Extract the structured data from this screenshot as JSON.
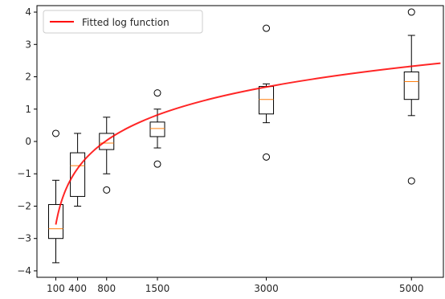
{
  "chart_data": {
    "type": "box",
    "title": "",
    "xlabel": "",
    "ylabel": "",
    "xlim": [
      -160,
      5440
    ],
    "ylim": [
      -4.2,
      4.2
    ],
    "xticks": [
      100,
      400,
      800,
      1500,
      3000,
      5000
    ],
    "yticks": [
      -4,
      -3,
      -2,
      -1,
      0,
      1,
      2,
      3,
      4
    ],
    "grid": false,
    "legend": {
      "position": "top-left",
      "entries": [
        "Fitted log function"
      ]
    },
    "colors": {
      "box": "#000000",
      "median": "#ff7f0e",
      "fit": "#ff0000",
      "axes": "#000000"
    },
    "boxes": [
      {
        "x": 100,
        "whisker_low": -3.75,
        "q1": -3.0,
        "median": -2.7,
        "q3": -1.95,
        "whisker_high": -1.2,
        "outliers": [
          0.25
        ]
      },
      {
        "x": 400,
        "whisker_low": -2.0,
        "q1": -1.7,
        "median": -0.75,
        "q3": -0.35,
        "whisker_high": 0.25,
        "outliers": []
      },
      {
        "x": 800,
        "whisker_low": -1.0,
        "q1": -0.25,
        "median": -0.05,
        "q3": 0.25,
        "whisker_high": 0.75,
        "outliers": [
          -1.5
        ]
      },
      {
        "x": 1500,
        "whisker_low": -0.2,
        "q1": 0.15,
        "median": 0.4,
        "q3": 0.6,
        "whisker_high": 1.0,
        "outliers": [
          1.5,
          -0.7
        ]
      },
      {
        "x": 3000,
        "whisker_low": 0.58,
        "q1": 0.85,
        "median": 1.3,
        "q3": 1.7,
        "whisker_high": 1.78,
        "outliers": [
          3.5,
          -0.48
        ]
      },
      {
        "x": 5000,
        "whisker_low": 0.8,
        "q1": 1.3,
        "median": 1.85,
        "q3": 2.15,
        "whisker_high": 3.28,
        "outliers": [
          4.0,
          -1.22
        ]
      }
    ],
    "fit_line": {
      "name": "Fitted log function",
      "x": [
        100,
        150,
        200,
        250,
        300,
        400,
        500,
        600,
        800,
        1000,
        1250,
        1500,
        2000,
        2500,
        3000,
        3500,
        4000,
        4500,
        5000,
        5400
      ],
      "y": [
        -3.25,
        -2.48,
        -1.94,
        -1.52,
        -1.18,
        -0.63,
        -0.21,
        0.13,
        0.67,
        0.77,
        0.95,
        1.1,
        1.32,
        1.5,
        1.65,
        1.77,
        1.87,
        1.95,
        1.83,
        1.95
      ]
    }
  }
}
